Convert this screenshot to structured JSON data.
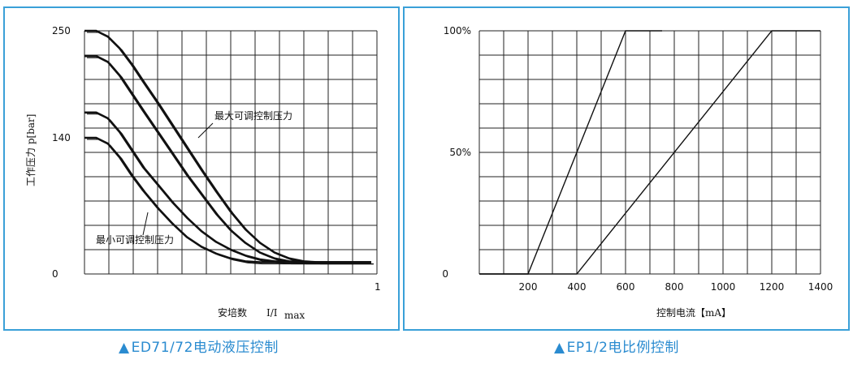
{
  "chart_data": [
    {
      "type": "line",
      "caption": "ED71/72电动液压控制",
      "ylabel": "工作压力 p[bar]",
      "xlabel_prefix": "安培数",
      "xlabel_ratio": "I/I",
      "xlabel_sub": "max",
      "y_ticks": [
        "250",
        "140",
        "0"
      ],
      "x_tick_end": "1",
      "xlim": [
        0,
        1
      ],
      "ylim": [
        0,
        250
      ],
      "annotations": [
        "最大可调控制压力",
        "最小可调控制压力"
      ],
      "series": [
        {
          "x": [
            0,
            0.04,
            0.08,
            0.12,
            0.16,
            0.2,
            0.25,
            0.3,
            0.35,
            0.4,
            0.45,
            0.5,
            0.55,
            0.6,
            0.65,
            0.7,
            0.75,
            0.8,
            0.9,
            0.98
          ],
          "values": [
            250,
            250,
            244,
            232,
            216,
            198,
            176,
            153,
            130,
            107,
            85,
            64,
            46,
            32,
            22,
            16,
            13,
            12,
            12,
            12
          ]
        },
        {
          "x": [
            0,
            0.04,
            0.08,
            0.12,
            0.16,
            0.2,
            0.25,
            0.3,
            0.35,
            0.4,
            0.45,
            0.5,
            0.55,
            0.6,
            0.65,
            0.7,
            0.75,
            0.8,
            0.9,
            0.98
          ],
          "values": [
            224,
            224,
            218,
            204,
            186,
            168,
            146,
            124,
            102,
            82,
            62,
            45,
            32,
            22,
            16,
            13,
            12,
            12,
            12,
            12
          ]
        },
        {
          "x": [
            0,
            0.04,
            0.08,
            0.12,
            0.16,
            0.2,
            0.25,
            0.3,
            0.35,
            0.4,
            0.45,
            0.5,
            0.55,
            0.6,
            0.65,
            0.7,
            0.75,
            0.8,
            0.9,
            0.98
          ],
          "values": [
            166,
            166,
            160,
            146,
            128,
            110,
            92,
            74,
            58,
            44,
            33,
            25,
            19,
            15,
            13,
            12,
            12,
            12,
            12,
            12
          ]
        },
        {
          "x": [
            0,
            0.04,
            0.08,
            0.12,
            0.16,
            0.2,
            0.25,
            0.3,
            0.35,
            0.4,
            0.45,
            0.5,
            0.55,
            0.6,
            0.65,
            0.7,
            0.75,
            0.8,
            0.9,
            0.98
          ],
          "values": [
            140,
            140,
            134,
            120,
            102,
            86,
            68,
            52,
            38,
            28,
            21,
            16,
            13,
            12,
            12,
            12,
            12,
            12,
            12,
            12
          ]
        }
      ],
      "grid": true,
      "grid_cols": 12,
      "grid_rows": 10
    },
    {
      "type": "line",
      "caption": "EP1/2电比例控制",
      "xlabel": "控制电流【mA】",
      "y_ticks": [
        "100%",
        "50%",
        "0"
      ],
      "x_ticks": [
        200,
        400,
        600,
        800,
        1000,
        1200,
        1400
      ],
      "xlim": [
        0,
        1400
      ],
      "ylim": [
        0,
        100
      ],
      "series": [
        {
          "x": [
            0,
            200,
            600,
            750
          ],
          "values": [
            0,
            0,
            100,
            100
          ]
        },
        {
          "x": [
            0,
            400,
            1200,
            1400
          ],
          "values": [
            0,
            0,
            100,
            100
          ]
        }
      ],
      "grid": true,
      "grid_cols": 14,
      "grid_rows": 10
    }
  ],
  "colors": {
    "border": "#3aa0d8",
    "caption": "#2a8bd0",
    "line": "#111111"
  }
}
